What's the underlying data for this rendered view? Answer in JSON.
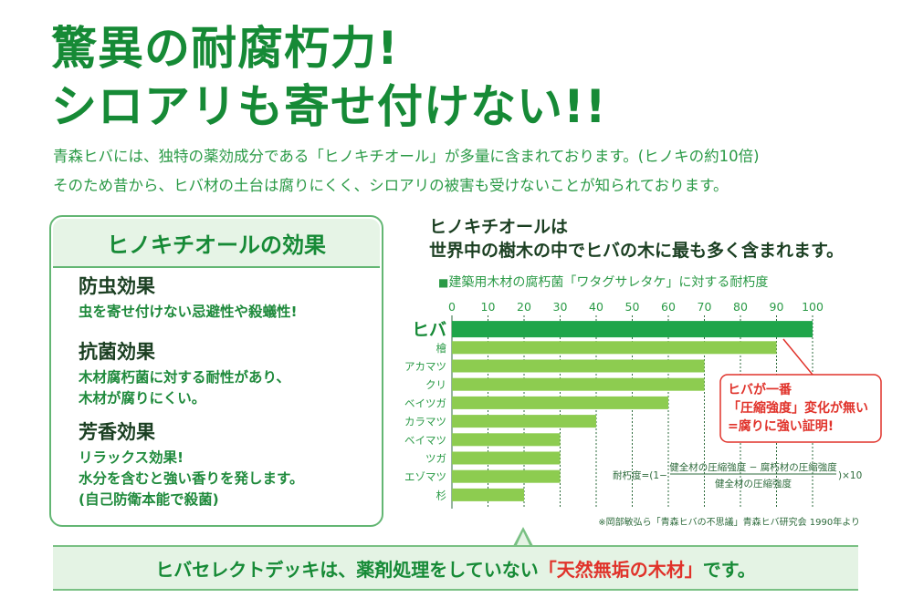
{
  "headline": {
    "line1": "驚異の耐腐朽力!",
    "line2": "シロアリも寄せ付けない!!"
  },
  "intro": {
    "line1": "青森ヒバには、独特の薬効成分である「ヒノキチオール」が多量に含まれております。(ヒノキの約10倍)",
    "line2": "そのため昔から、ヒバ材の土台は腐りにくく、シロアリの被害も受けないことが知られております。"
  },
  "effects": {
    "heading": "ヒノキチオールの効果",
    "items": [
      {
        "title": "防虫効果",
        "lines": [
          "虫を寄せ付けない忌避性や殺蟻性!"
        ]
      },
      {
        "title": "抗菌効果",
        "lines": [
          "木材腐朽菌に対する耐性があり、",
          "木材が腐りにくい。"
        ]
      },
      {
        "title": "芳香効果",
        "lines": [
          "リラックス効果!",
          "水分を含むと強い香りを発します。",
          "(自己防衛本能で殺菌)"
        ]
      }
    ]
  },
  "chart_heading": {
    "line1": "ヒノキチオールは",
    "line2": "世界中の樹木の中でヒバの木に最も多く含まれます。"
  },
  "chart_data": {
    "type": "bar",
    "orientation": "horizontal",
    "title_marker": "■",
    "title": "建築用木材の腐朽菌「ワタグサレタケ」に対する耐朽度",
    "categories": [
      "ヒバ",
      "檜",
      "アカマツ",
      "クリ",
      "ベイツガ",
      "カラマツ",
      "ベイマツ",
      "ツガ",
      "エゾマツ",
      "杉"
    ],
    "values": [
      100,
      90,
      70,
      70,
      60,
      40,
      30,
      30,
      30,
      20
    ],
    "xticks": [
      0,
      10,
      20,
      30,
      40,
      50,
      60,
      70,
      80,
      90,
      100
    ],
    "xlim": [
      0,
      100
    ],
    "grid": true,
    "highlight_color": "#1fa54a",
    "bar_color": "#8dcc50",
    "callout": {
      "lines": [
        "ヒバが一番",
        "「圧縮強度」変化が無い",
        "=腐りに強い証明!"
      ],
      "color": "#e0322a"
    },
    "formula": {
      "prefix": "耐朽度=(1−",
      "numerator": "健全材の圧縮強度 − 腐朽材の圧縮強度",
      "denominator": "健全材の圧縮強度",
      "suffix": ")×10"
    },
    "source": "※岡部敏弘ら「青森ヒバの不思議」青森ヒバ研究会 1990年より"
  },
  "bottom": {
    "before": "ヒバセレクトデッキは、薬剤処理をしていない",
    "highlight": "「天然無垢の木材」",
    "after": "です。"
  },
  "colors": {
    "green": "#168a36",
    "red": "#e0322a",
    "pale_green": "#e4f3e4"
  }
}
